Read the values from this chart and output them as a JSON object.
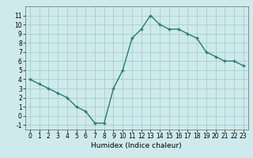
{
  "x": [
    0,
    1,
    2,
    3,
    4,
    5,
    6,
    7,
    8,
    9,
    10,
    11,
    12,
    13,
    14,
    15,
    16,
    17,
    18,
    19,
    20,
    21,
    22,
    23
  ],
  "y": [
    4.0,
    3.5,
    3.0,
    2.5,
    2.0,
    1.0,
    0.5,
    -0.8,
    -0.8,
    3.0,
    5.0,
    8.5,
    9.5,
    11.0,
    10.0,
    9.5,
    9.5,
    9.0,
    8.5,
    7.0,
    6.5,
    6.0,
    6.0,
    5.5
  ],
  "xlabel": "Humidex (Indice chaleur)",
  "line_color": "#2a7a6e",
  "marker_color": "#2a7a6e",
  "bg_color": "#ceeaec",
  "grid_color": "#a8cdd1",
  "ylim": [
    -1.5,
    12
  ],
  "xlim": [
    -0.5,
    23.5
  ],
  "yticks": [
    -1,
    0,
    1,
    2,
    3,
    4,
    5,
    6,
    7,
    8,
    9,
    10,
    11
  ],
  "xticks": [
    0,
    1,
    2,
    3,
    4,
    5,
    6,
    7,
    8,
    9,
    10,
    11,
    12,
    13,
    14,
    15,
    16,
    17,
    18,
    19,
    20,
    21,
    22,
    23
  ],
  "tick_fontsize": 5.5,
  "xlabel_fontsize": 6.5
}
